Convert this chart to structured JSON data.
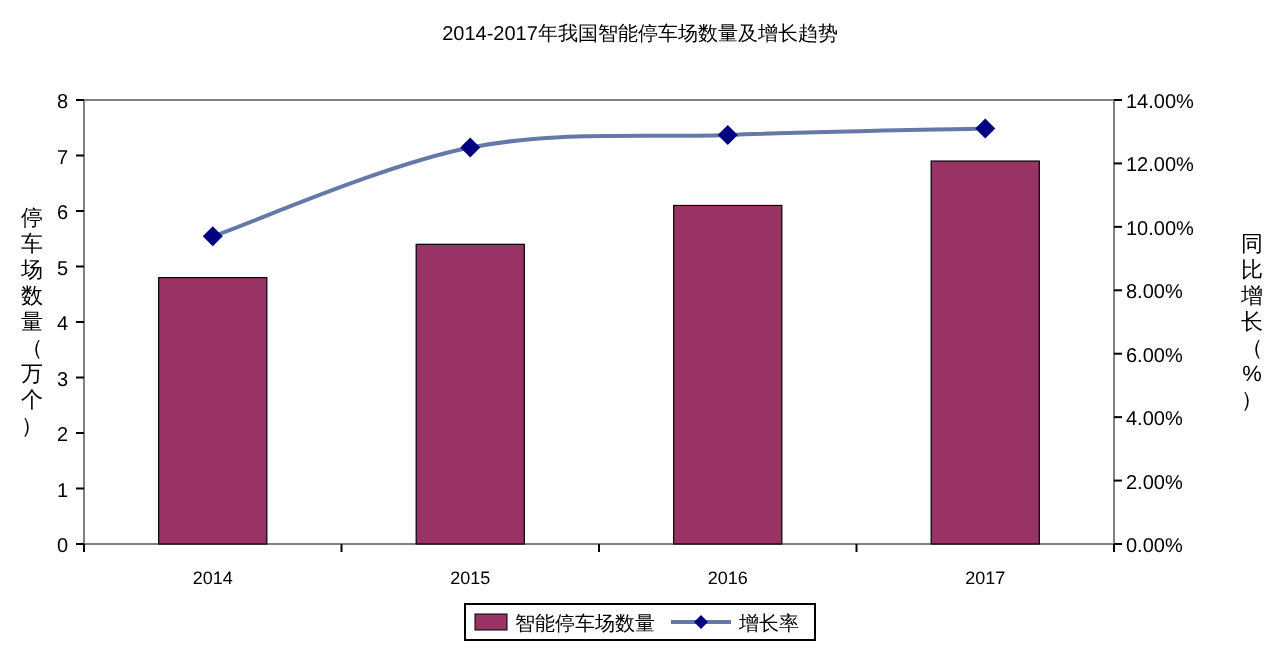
{
  "chart_data": {
    "type": "bar",
    "title": "2014-2017年我国智能停车场数量及增长趋势",
    "categories": [
      "2014",
      "2015",
      "2016",
      "2017"
    ],
    "series": [
      {
        "name": "智能停车场数量",
        "color": "#993366",
        "values": [
          4.8,
          5.4,
          6.1,
          6.9
        ]
      },
      {
        "name": "增长率",
        "type": "line",
        "axis": "y2",
        "color": "#000080",
        "marker": "diamond",
        "values": [
          9.7,
          12.5,
          12.9,
          13.1
        ]
      }
    ],
    "ylabel": "停车场数量（万个）",
    "y2label": "同比增长（%）",
    "ylim": [
      0,
      8
    ],
    "yticks": [
      0,
      1,
      2,
      3,
      4,
      5,
      6,
      7,
      8
    ],
    "y2lim": [
      0,
      14
    ],
    "y2ticks": [
      {
        "value": 0,
        "label": "0.00%"
      },
      {
        "value": 2,
        "label": "2.00%"
      },
      {
        "value": 4,
        "label": "4.00%"
      },
      {
        "value": 6,
        "label": "6.00%"
      },
      {
        "value": 8,
        "label": "8.00%"
      },
      {
        "value": 10,
        "label": "10.00%"
      },
      {
        "value": 12,
        "label": "12.00%"
      },
      {
        "value": 14,
        "label": "14.00%"
      }
    ],
    "legend": "bottom",
    "grid": false
  }
}
